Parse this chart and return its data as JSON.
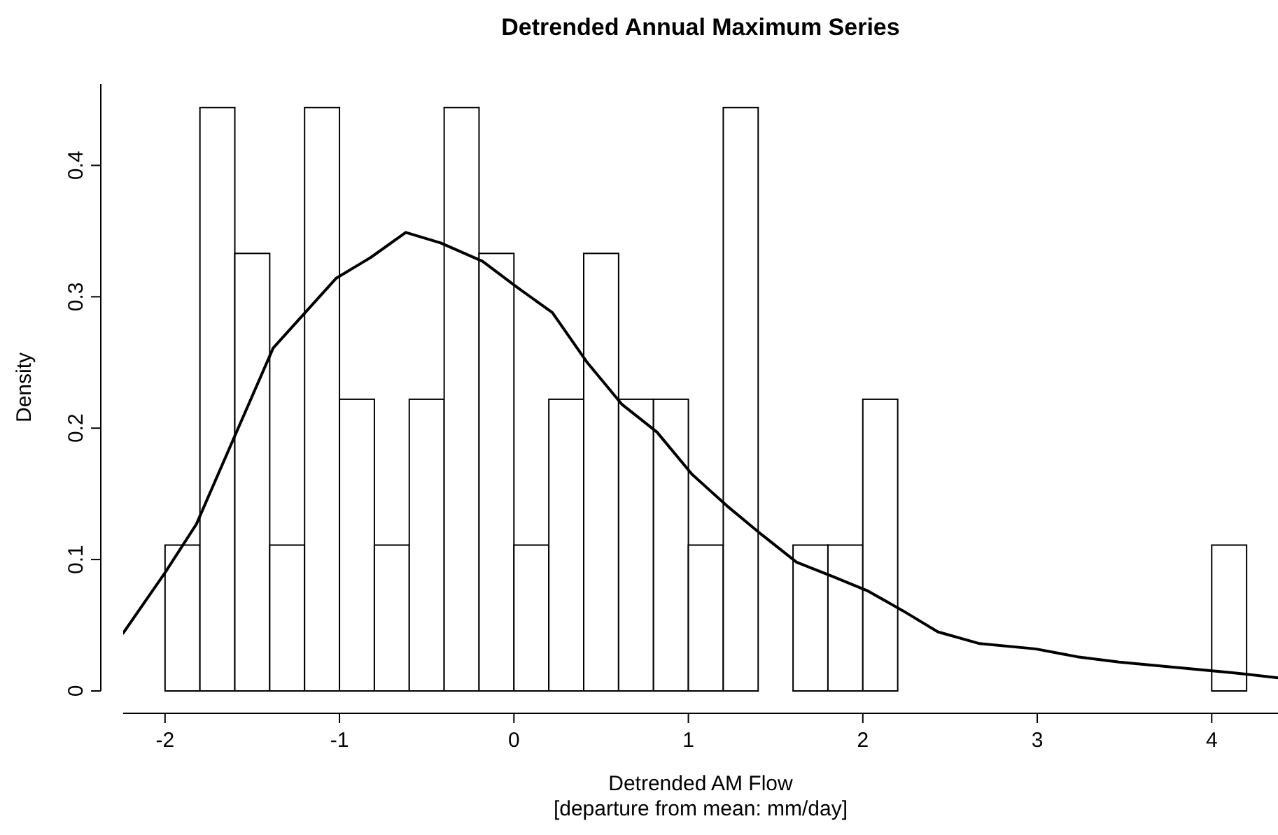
{
  "chart_data": {
    "type": "histogram",
    "title": "Detrended Annual Maximum Series",
    "xlabel": "Detrended AM Flow\n[departure from mean: mm/day]",
    "ylabel": "Density",
    "bins": [
      -2,
      -1.8,
      -1.6,
      -1.4,
      -1.2,
      -1,
      -0.8,
      -0.6,
      -0.4,
      -0.2,
      0,
      0.2,
      0.4,
      0.6,
      0.8,
      1,
      1.2,
      1.4,
      1.6,
      1.8,
      2,
      2.2,
      2.4,
      2.6,
      2.8,
      3,
      3.2,
      3.4,
      3.6,
      3.8,
      4,
      4.2
    ],
    "values": [
      0.111,
      0.444,
      0.333,
      0.111,
      0.444,
      0.222,
      0.111,
      0.222,
      0.444,
      0.333,
      0.111,
      0.222,
      0.333,
      0.222,
      0.222,
      0.111,
      0.444,
      0,
      0.111,
      0.111,
      0.222,
      0,
      0,
      0,
      0,
      0,
      0,
      0,
      0,
      0,
      0.111
    ],
    "color": "#ffffff",
    "series": [
      {
        "type": "line",
        "color": "#000000",
        "x": [
          -2.24,
          -2,
          -1.82,
          -1.62,
          -1.38,
          -1.02,
          -0.82,
          -0.62,
          -0.42,
          -0.18,
          0.02,
          0.22,
          0.42,
          0.62,
          0.82,
          1.02,
          1.22,
          1.42,
          1.62,
          1.83,
          2.03,
          2.23,
          2.43,
          2.67,
          2.99,
          3.23,
          3.47,
          3.79,
          4.11,
          4.38
        ],
        "values": [
          0.044,
          0.09,
          0.127,
          0.188,
          0.261,
          0.314,
          0.33,
          0.349,
          0.341,
          0.327,
          0.307,
          0.288,
          0.25,
          0.218,
          0.197,
          0.165,
          0.141,
          0.119,
          0.098,
          0.087,
          0.076,
          0.061,
          0.045,
          0.036,
          0.032,
          0.026,
          0.022,
          0.018,
          0.014,
          0.01
        ]
      }
    ],
    "xlim": [
      -2.24,
      4.38
    ],
    "xticks": [
      -2,
      -1,
      0,
      1,
      2,
      3,
      4
    ],
    "ylim": [
      0,
      0.462
    ],
    "yticks": [
      0,
      0.1,
      0.2,
      0.3,
      0.4
    ],
    "grid": false
  }
}
